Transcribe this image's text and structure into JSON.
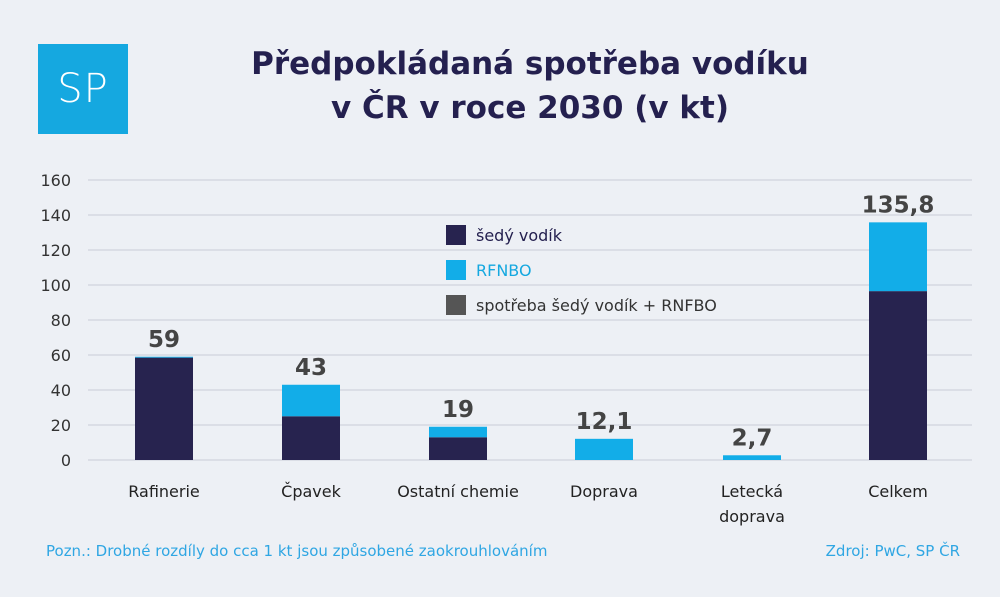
{
  "logo": {
    "text": "SP"
  },
  "title_lines": [
    "Předpokládaná spotřeba vodíku",
    "v ČR v roce 2030 (v kt)"
  ],
  "note": "Pozn.: Drobné rozdíly do cca 1 kt jsou způsobené zaokrouhlováním",
  "source": "Zdroj: PwC, SP ČR",
  "colors": {
    "grey_hydrogen": "#27234f",
    "rfnbo": "#12ade8",
    "combined": "#555555",
    "title": "#24204f",
    "accent": "#15a8e0"
  },
  "chart_data": {
    "type": "bar",
    "stacked": true,
    "categories": [
      "Rafinerie",
      "Čpavek",
      "Ostatní chemie",
      "Doprava",
      "Letecká doprava",
      "Celkem"
    ],
    "category_lines": [
      [
        "Rafinerie"
      ],
      [
        "Čpavek"
      ],
      [
        "Ostatní chemie"
      ],
      [
        "Doprava"
      ],
      [
        "Letecká",
        "doprava"
      ],
      [
        "Celkem"
      ]
    ],
    "series": [
      {
        "name": "šedý vodík",
        "values": [
          58.5,
          25,
          13,
          0,
          0,
          96.5
        ]
      },
      {
        "name": "RFNBO",
        "values": [
          0.5,
          18,
          6,
          12.1,
          2.7,
          39.3
        ]
      }
    ],
    "legend": [
      "šedý vodík",
      "RFNBO",
      "spotřeba šedý vodík + RNFBO"
    ],
    "totals": [
      "59",
      "43",
      "19",
      "12,1",
      "2,7",
      "135,8"
    ],
    "ylim": [
      0,
      160
    ],
    "yticks": [
      0,
      20,
      40,
      60,
      80,
      100,
      120,
      140,
      160
    ],
    "grid": true,
    "legend_position": "center"
  }
}
